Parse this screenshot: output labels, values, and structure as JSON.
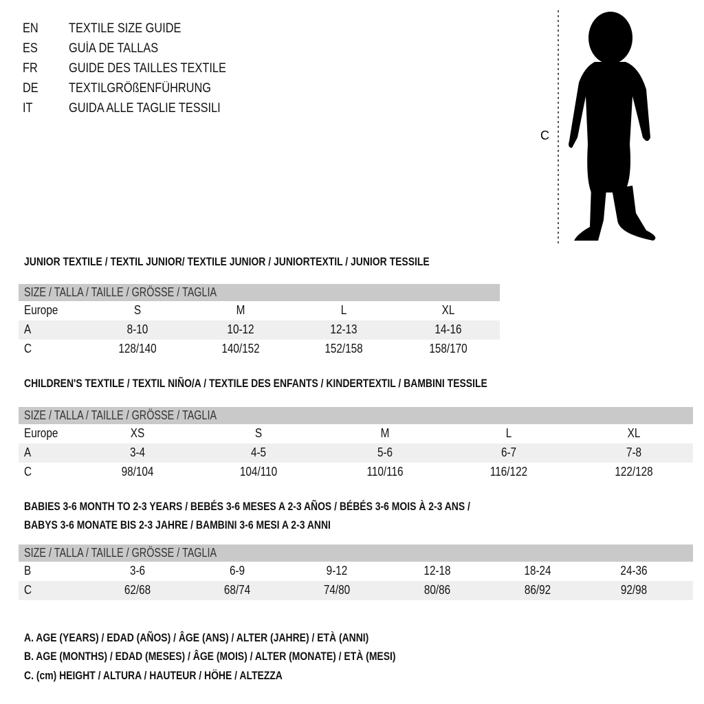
{
  "languages": [
    {
      "code": "EN",
      "title": "TEXTILE SIZE GUIDE"
    },
    {
      "code": "ES",
      "title": "GUÍA DE TALLAS"
    },
    {
      "code": "FR",
      "title": "GUIDE DES TAILLES TEXTILE"
    },
    {
      "code": "DE",
      "title": "TEXTILGRÖßENFÜHRUNG"
    },
    {
      "code": "IT",
      "title": "GUIDA ALLE TAGLIE TESSILI"
    }
  ],
  "figure": {
    "label": "C"
  },
  "size_header": "SIZE / TALLA / TAILLE / GRÖSSE / TAGLIA",
  "junior": {
    "title": "JUNIOR TEXTILE / TEXTIL JUNIOR/ TEXTILE JUNIOR / JUNIORTEXTIL / JUNIOR TESSILE",
    "rows": [
      {
        "label": "Europe",
        "values": [
          "S",
          "M",
          "L",
          "XL"
        ]
      },
      {
        "label": "A",
        "values": [
          "8-10",
          "10-12",
          "12-13",
          "14-16"
        ]
      },
      {
        "label": "C",
        "values": [
          "128/140",
          "140/152",
          "152/158",
          "158/170"
        ]
      }
    ]
  },
  "children": {
    "title": "CHILDREN'S TEXTILE / TEXTIL NIÑO/A / TEXTILE DES ENFANTS / KINDERTEXTIL / BAMBINI TESSILE",
    "rows": [
      {
        "label": "Europe",
        "values": [
          "XS",
          "S",
          "M",
          "L",
          "XL"
        ]
      },
      {
        "label": "A",
        "values": [
          "3-4",
          "4-5",
          "5-6",
          "6-7",
          "7-8"
        ]
      },
      {
        "label": "C",
        "values": [
          "98/104",
          "104/110",
          "110/116",
          "116/122",
          "122/128"
        ]
      }
    ]
  },
  "babies": {
    "title_line1": "BABIES 3-6 MONTH TO 2-3 YEARS / BEBÉS 3-6 MESES A 2-3 AÑOS / BÉBÉS 3-6 MOIS À 2-3 ANS /",
    "title_line2": "BABYS 3-6 MONATE BIS 2-3 JAHRE / BAMBINI 3-6 MESI A 2-3 ANNI",
    "rows": [
      {
        "label": "B",
        "values": [
          "3-6",
          "6-9",
          "9-12",
          "12-18",
          "18-24",
          "24-36"
        ]
      },
      {
        "label": "C",
        "values": [
          "62/68",
          "68/74",
          "74/80",
          "80/86",
          "86/92",
          "92/98"
        ]
      }
    ]
  },
  "legend": [
    "A. AGE (YEARS) / EDAD (AÑOS) / ÂGE (ANS) / ALTER (JAHRE) / ETÀ (ANNI)",
    "B. AGE (MONTHS) / EDAD (MESES) / ÂGE (MOIS) / ALTER (MONATE) / ETÀ (MESI)",
    "C. (cm) HEIGHT / ALTURA / HAUTEUR / HÖHE / ALTEZZA"
  ],
  "colors": {
    "header_band": "#c9c9c9",
    "shaded_row": "#efefef"
  }
}
